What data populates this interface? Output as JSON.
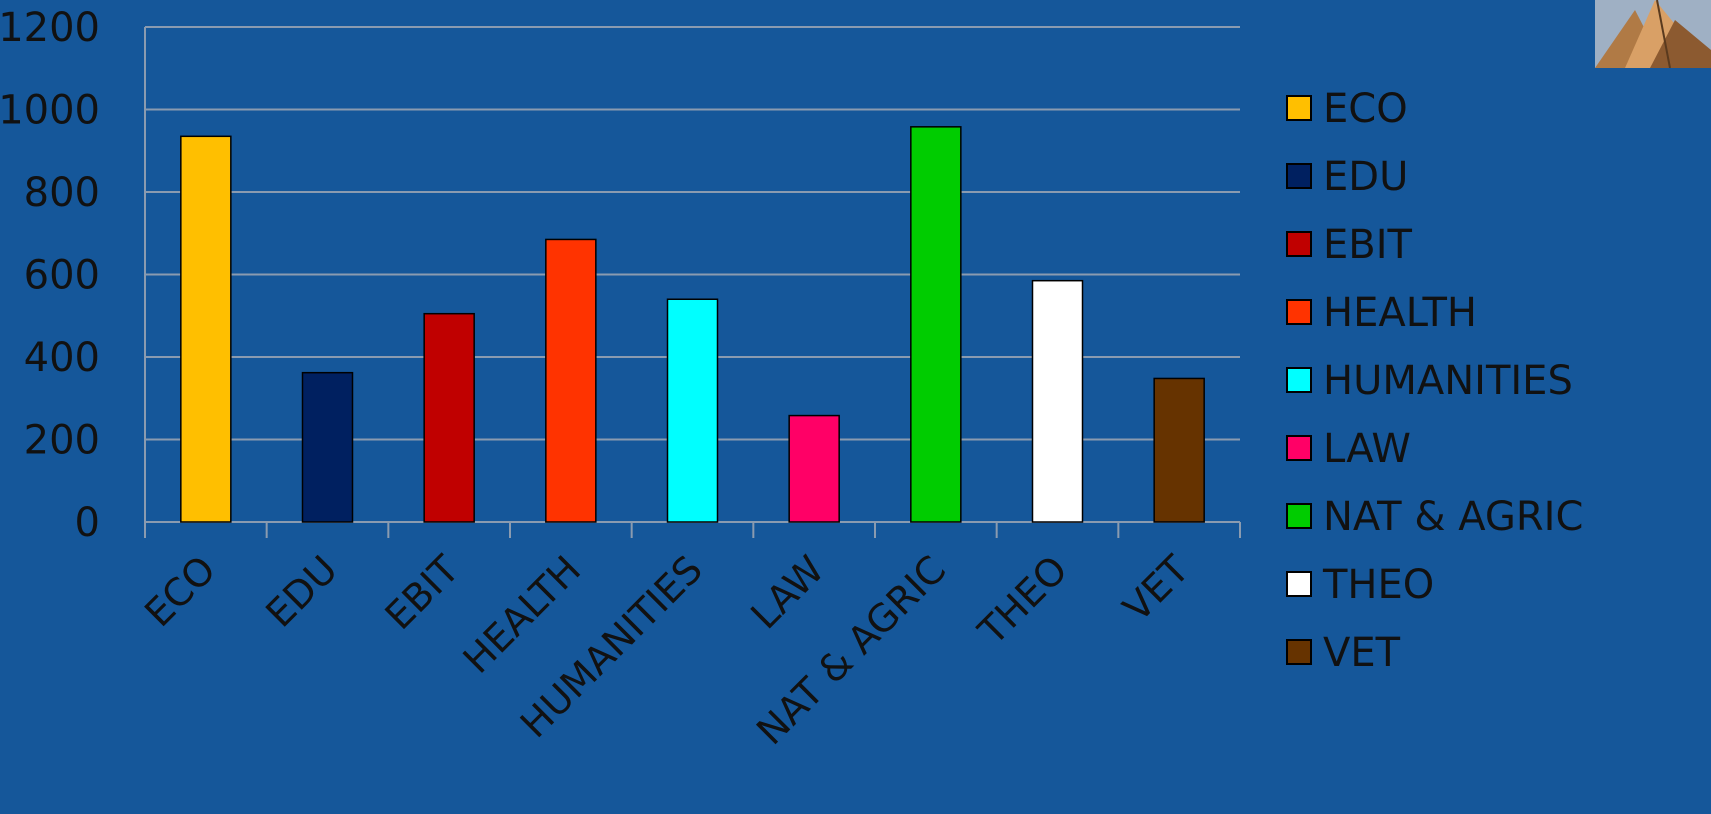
{
  "chart_data": {
    "type": "bar",
    "categories": [
      "ECO",
      "EDU",
      "EBIT",
      "HEALTH",
      "HUMANITIES",
      "LAW",
      "NAT & AGRIC",
      "THEO",
      "VET"
    ],
    "values": [
      935,
      362,
      505,
      685,
      540,
      258,
      958,
      585,
      348
    ],
    "colors": [
      "#ffbf00",
      "#002060",
      "#c00000",
      "#ff3300",
      "#00ffff",
      "#ff0066",
      "#00cc00",
      "#ffffff",
      "#663300"
    ],
    "ylim": [
      0,
      1200
    ],
    "yticks": [
      "0",
      "200",
      "400",
      "600",
      "800",
      "1000",
      "1200"
    ],
    "grid": true,
    "legend_position": "right",
    "title": "",
    "xlabel": "",
    "ylabel": ""
  },
  "decoration": {
    "corner_image": "thumbnail-photo"
  }
}
